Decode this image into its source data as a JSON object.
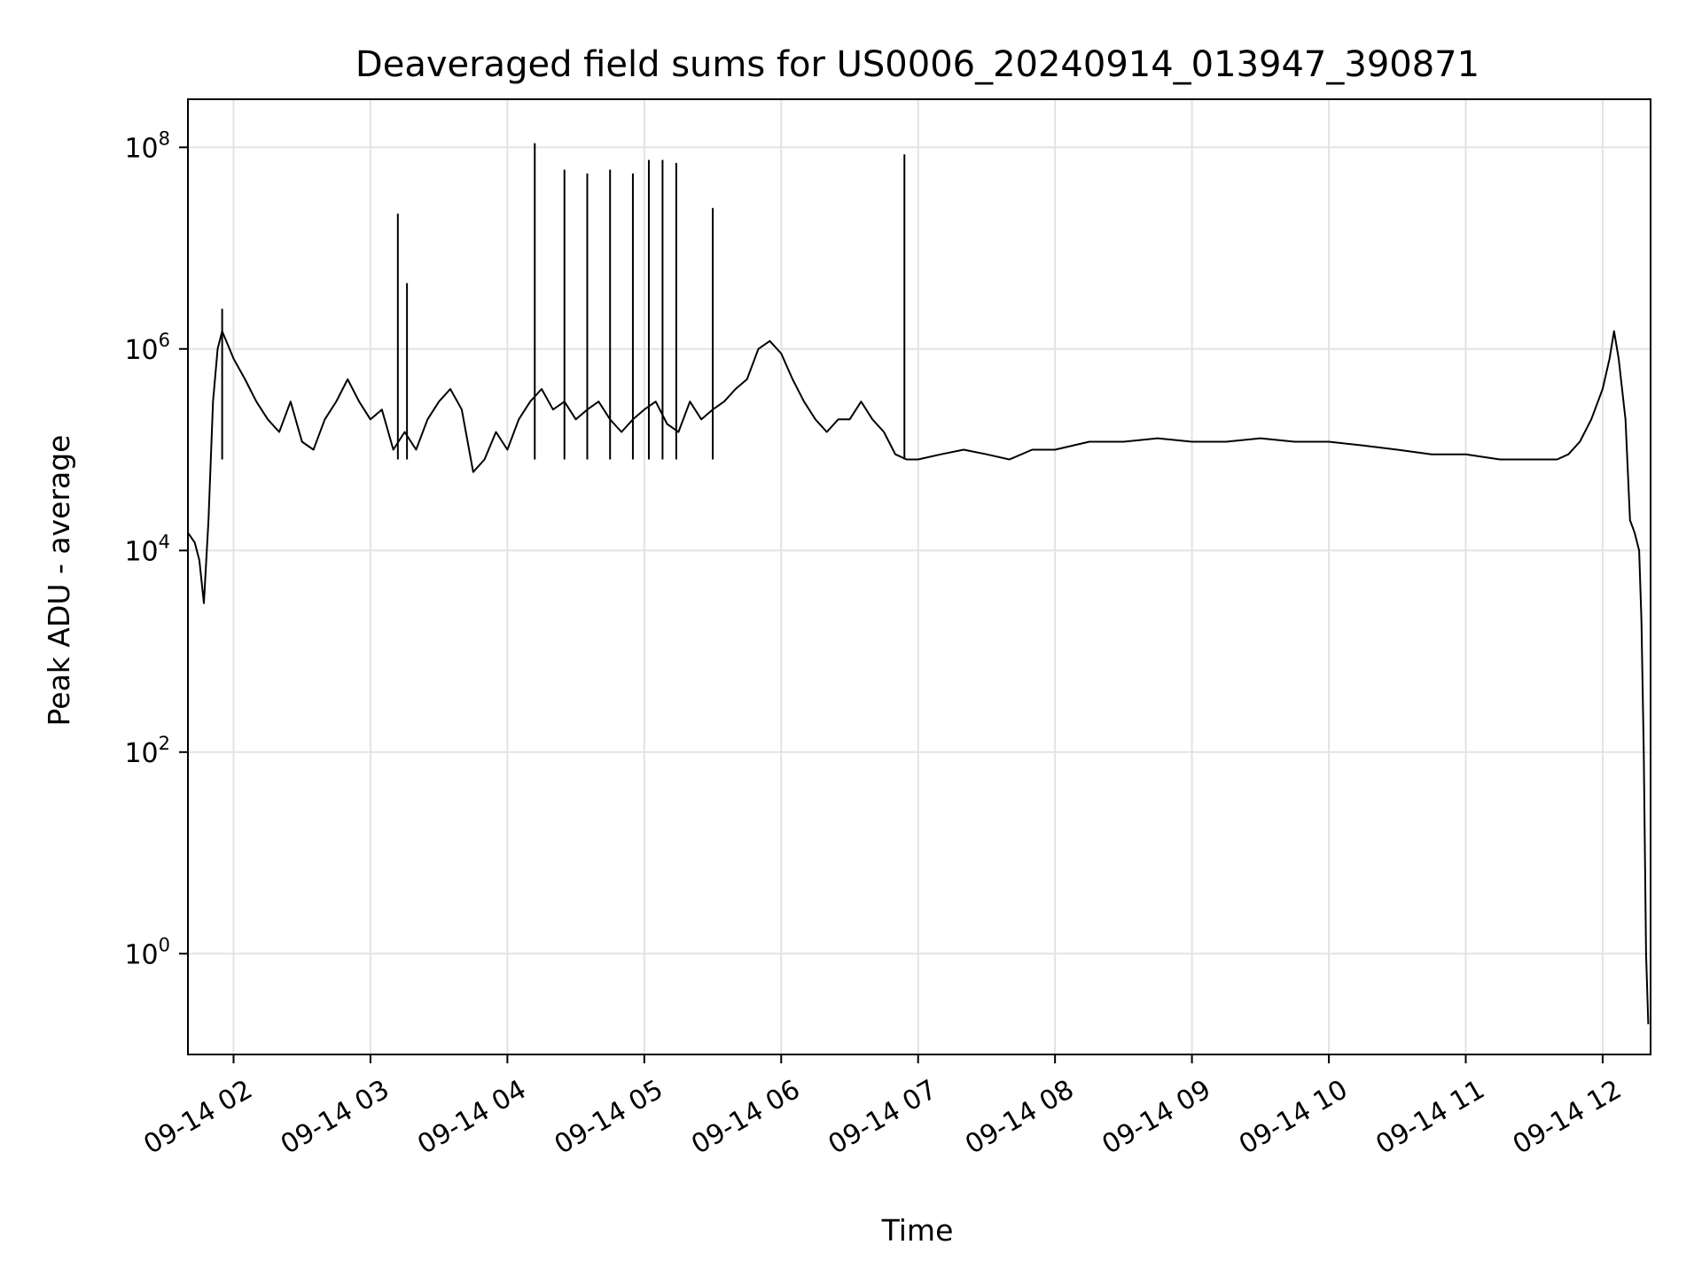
{
  "chart_data": {
    "type": "line",
    "title": "Deaveraged field sums for US0006_20240914_013947_390871",
    "xlabel": "Time",
    "ylabel": "Peak ADU - average",
    "y_scale": "log",
    "grid": true,
    "line_color": "#000000",
    "x_range": [
      "2024-09-14 01:40",
      "2024-09-14 12:21"
    ],
    "ylim": [
      0.1,
      300000000.0
    ],
    "x_ticks": [
      {
        "value": "2024-09-14 02:00",
        "label": "09-14 02"
      },
      {
        "value": "2024-09-14 03:00",
        "label": "09-14 03"
      },
      {
        "value": "2024-09-14 04:00",
        "label": "09-14 04"
      },
      {
        "value": "2024-09-14 05:00",
        "label": "09-14 05"
      },
      {
        "value": "2024-09-14 06:00",
        "label": "09-14 06"
      },
      {
        "value": "2024-09-14 07:00",
        "label": "09-14 07"
      },
      {
        "value": "2024-09-14 08:00",
        "label": "09-14 08"
      },
      {
        "value": "2024-09-14 09:00",
        "label": "09-14 09"
      },
      {
        "value": "2024-09-14 10:00",
        "label": "09-14 10"
      },
      {
        "value": "2024-09-14 11:00",
        "label": "09-14 11"
      },
      {
        "value": "2024-09-14 12:00",
        "label": "09-14 12"
      }
    ],
    "y_ticks": [
      {
        "value": 1,
        "base": "10",
        "exp": "0"
      },
      {
        "value": 100,
        "base": "10",
        "exp": "2"
      },
      {
        "value": 10000,
        "base": "10",
        "exp": "4"
      },
      {
        "value": 1000000,
        "base": "10",
        "exp": "6"
      },
      {
        "value": 100000000,
        "base": "10",
        "exp": "8"
      }
    ],
    "series": [
      {
        "x": [
          "2024-09-14 01:40",
          "2024-09-14 01:43",
          "2024-09-14 01:45",
          "2024-09-14 01:47",
          "2024-09-14 01:49",
          "2024-09-14 01:51",
          "2024-09-14 01:53",
          "2024-09-14 01:55",
          "2024-09-14 02:00",
          "2024-09-14 02:05",
          "2024-09-14 02:10",
          "2024-09-14 02:15",
          "2024-09-14 02:20",
          "2024-09-14 02:25",
          "2024-09-14 02:30",
          "2024-09-14 02:35",
          "2024-09-14 02:40",
          "2024-09-14 02:45",
          "2024-09-14 02:50",
          "2024-09-14 02:55",
          "2024-09-14 03:00",
          "2024-09-14 03:05",
          "2024-09-14 03:10",
          "2024-09-14 03:15",
          "2024-09-14 03:20",
          "2024-09-14 03:25",
          "2024-09-14 03:30",
          "2024-09-14 03:35",
          "2024-09-14 03:40",
          "2024-09-14 03:45",
          "2024-09-14 03:50",
          "2024-09-14 03:55",
          "2024-09-14 04:00",
          "2024-09-14 04:05",
          "2024-09-14 04:10",
          "2024-09-14 04:15",
          "2024-09-14 04:20",
          "2024-09-14 04:25",
          "2024-09-14 04:30",
          "2024-09-14 04:35",
          "2024-09-14 04:40",
          "2024-09-14 04:45",
          "2024-09-14 04:50",
          "2024-09-14 04:55",
          "2024-09-14 05:00",
          "2024-09-14 05:05",
          "2024-09-14 05:10",
          "2024-09-14 05:15",
          "2024-09-14 05:20",
          "2024-09-14 05:25",
          "2024-09-14 05:30",
          "2024-09-14 05:35",
          "2024-09-14 05:40",
          "2024-09-14 05:45",
          "2024-09-14 05:50",
          "2024-09-14 05:55",
          "2024-09-14 06:00",
          "2024-09-14 06:05",
          "2024-09-14 06:10",
          "2024-09-14 06:15",
          "2024-09-14 06:20",
          "2024-09-14 06:25",
          "2024-09-14 06:30",
          "2024-09-14 06:35",
          "2024-09-14 06:40",
          "2024-09-14 06:45",
          "2024-09-14 06:50",
          "2024-09-14 06:55",
          "2024-09-14 07:00",
          "2024-09-14 07:10",
          "2024-09-14 07:20",
          "2024-09-14 07:30",
          "2024-09-14 07:40",
          "2024-09-14 07:50",
          "2024-09-14 08:00",
          "2024-09-14 08:15",
          "2024-09-14 08:30",
          "2024-09-14 08:45",
          "2024-09-14 09:00",
          "2024-09-14 09:15",
          "2024-09-14 09:30",
          "2024-09-14 09:45",
          "2024-09-14 10:00",
          "2024-09-14 10:15",
          "2024-09-14 10:30",
          "2024-09-14 10:45",
          "2024-09-14 11:00",
          "2024-09-14 11:15",
          "2024-09-14 11:30",
          "2024-09-14 11:40",
          "2024-09-14 11:45",
          "2024-09-14 11:50",
          "2024-09-14 11:55",
          "2024-09-14 12:00",
          "2024-09-14 12:03",
          "2024-09-14 12:05",
          "2024-09-14 12:07",
          "2024-09-14 12:10",
          "2024-09-14 12:12",
          "2024-09-14 12:14",
          "2024-09-14 12:16",
          "2024-09-14 12:17",
          "2024-09-14 12:18",
          "2024-09-14 12:19",
          "2024-09-14 12:20"
        ],
        "y": [
          15000,
          12000,
          8000,
          3000,
          20000,
          300000,
          1000000,
          1500000,
          800000,
          500000,
          300000,
          200000,
          150000,
          300000,
          120000,
          100000,
          200000,
          300000,
          500000,
          300000,
          200000,
          250000,
          100000,
          150000,
          100000,
          200000,
          300000,
          400000,
          250000,
          60000,
          80000,
          150000,
          100000,
          200000,
          300000,
          400000,
          250000,
          300000,
          200000,
          250000,
          300000,
          200000,
          150000,
          200000,
          250000,
          300000,
          180000,
          150000,
          300000,
          200000,
          250000,
          300000,
          400000,
          500000,
          1000000,
          1200000,
          900000,
          500000,
          300000,
          200000,
          150000,
          200000,
          200000,
          300000,
          200000,
          150000,
          90000,
          80000,
          80000,
          90000,
          100000,
          90000,
          80000,
          100000,
          100000,
          120000,
          120000,
          130000,
          120000,
          120000,
          130000,
          120000,
          120000,
          110000,
          100000,
          90000,
          90000,
          80000,
          80000,
          80000,
          90000,
          120000,
          200000,
          400000,
          800000,
          1500000,
          800000,
          200000,
          20000,
          15000,
          10000,
          2000,
          100,
          1,
          0.2
        ],
        "spikes": [
          {
            "x": "2024-09-14 01:55",
            "y": 2500000
          },
          {
            "x": "2024-09-14 03:12",
            "y": 22000000
          },
          {
            "x": "2024-09-14 03:16",
            "y": 4500000
          },
          {
            "x": "2024-09-14 04:12",
            "y": 110000000
          },
          {
            "x": "2024-09-14 04:25",
            "y": 60000000
          },
          {
            "x": "2024-09-14 04:35",
            "y": 55000000
          },
          {
            "x": "2024-09-14 04:45",
            "y": 60000000
          },
          {
            "x": "2024-09-14 04:55",
            "y": 55000000
          },
          {
            "x": "2024-09-14 05:02",
            "y": 75000000
          },
          {
            "x": "2024-09-14 05:08",
            "y": 75000000
          },
          {
            "x": "2024-09-14 05:14",
            "y": 70000000
          },
          {
            "x": "2024-09-14 05:30",
            "y": 25000000
          },
          {
            "x": "2024-09-14 06:54",
            "y": 85000000
          }
        ]
      }
    ]
  }
}
